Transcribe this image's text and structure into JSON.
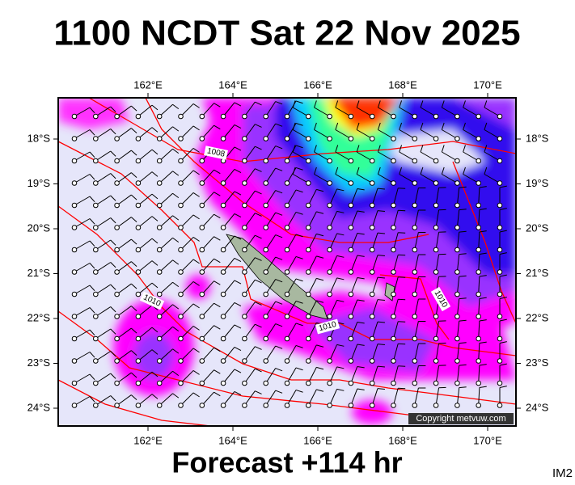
{
  "title": "1100 NCDT Sat 22 Nov 2025",
  "map": {
    "lon_labels": [
      "162°E",
      "164°E",
      "166°E",
      "168°E",
      "170°E"
    ],
    "lat_labels": [
      "18°S",
      "19°S",
      "20°S",
      "21°S",
      "22°S",
      "23°S",
      "24°S"
    ],
    "isobar_labels": [
      "1008",
      "1010",
      "1010",
      "1010"
    ],
    "copyright": "Copyright metvuw.com"
  },
  "footer": {
    "forecast": "Forecast +114 hr",
    "code": "IM2"
  }
}
